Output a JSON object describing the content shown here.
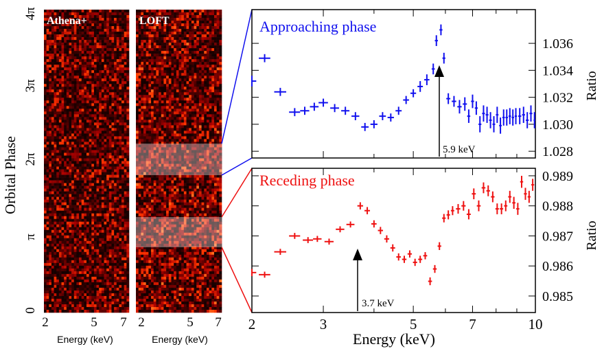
{
  "colors": {
    "approaching": "#1010ee",
    "receding": "#ee1111",
    "axis": "#000000",
    "heatmap_low": "#1a0000",
    "heatmap_high": "#ffb347"
  },
  "chart_data": [
    {
      "type": "heatmap",
      "title": "Athena+",
      "xlabel": "Energy (keV)",
      "ylabel": "Orbital Phase",
      "x_ticks": [
        "2",
        "5",
        "7"
      ],
      "y_ticks": [
        "0",
        "π",
        "2π",
        "3π",
        "4π"
      ],
      "xlim": [
        2,
        7
      ],
      "ylim_phase_pi": [
        0,
        4
      ]
    },
    {
      "type": "heatmap",
      "title": "LOFT",
      "xlabel": "Energy (keV)",
      "x_ticks": [
        "2",
        "5",
        "7"
      ],
      "xlim": [
        2,
        7
      ],
      "ylim_phase_pi": [
        0,
        4
      ],
      "highlight_bands_phase_pi": [
        [
          1.85,
          2.3
        ],
        [
          0.85,
          1.3
        ]
      ]
    },
    {
      "type": "scatter",
      "title": "Approaching phase",
      "ylabel": "Ratio",
      "x_scale": "log",
      "xlim": [
        2,
        10
      ],
      "ylim": [
        1.0275,
        1.0385
      ],
      "y_ticks": [
        "1.028",
        "1.030",
        "1.032",
        "1.034",
        "1.036"
      ],
      "series": [
        {
          "color": "#1010ee",
          "x": [
            2.0,
            2.15,
            2.35,
            2.55,
            2.7,
            2.85,
            3.0,
            3.2,
            3.4,
            3.6,
            3.8,
            4.0,
            4.2,
            4.4,
            4.6,
            4.8,
            5.0,
            5.2,
            5.4,
            5.6,
            5.7,
            5.85,
            5.95,
            6.1,
            6.3,
            6.5,
            6.7,
            6.85,
            7.0,
            7.15,
            7.3,
            7.45,
            7.6,
            7.75,
            7.9,
            8.05,
            8.2,
            8.35,
            8.5,
            8.65,
            8.8,
            8.95,
            9.15,
            9.35,
            9.55,
            9.75,
            9.95
          ],
          "y": [
            1.0332,
            1.0349,
            1.0324,
            1.0309,
            1.031,
            1.0313,
            1.0316,
            1.0312,
            1.031,
            1.0306,
            1.0298,
            1.03,
            1.0306,
            1.0305,
            1.031,
            1.0318,
            1.0323,
            1.0328,
            1.0333,
            1.0341,
            1.0362,
            1.037,
            1.0349,
            1.0319,
            1.0317,
            1.0313,
            1.0315,
            1.0306,
            1.0317,
            1.0312,
            1.03,
            1.0308,
            1.0307,
            1.0303,
            1.03,
            1.0307,
            1.0299,
            1.0305,
            1.0305,
            1.0306,
            1.0305,
            1.0306,
            1.0306,
            1.0307,
            1.0303,
            1.0308,
            1.0303
          ],
          "xerr": [
            0.05,
            0.07,
            0.08,
            0.08,
            0.07,
            0.07,
            0.08,
            0.08,
            0.08,
            0.08,
            0.08,
            0.08,
            0.08,
            0.08,
            0.08,
            0.08,
            0.08,
            0.08,
            0.08,
            0.05,
            0.05,
            0.05,
            0.05,
            0.07,
            0.08,
            0.08,
            0.08,
            0.06,
            0.06,
            0.06,
            0.06,
            0.06,
            0.06,
            0.06,
            0.06,
            0.06,
            0.06,
            0.06,
            0.06,
            0.06,
            0.06,
            0.06,
            0.08,
            0.08,
            0.08,
            0.08,
            0.05
          ],
          "yerr": [
            0.0004,
            0.0003,
            0.0003,
            0.0003,
            0.0003,
            0.0003,
            0.0003,
            0.0003,
            0.0003,
            0.0003,
            0.0003,
            0.0003,
            0.0003,
            0.0003,
            0.0003,
            0.0003,
            0.0003,
            0.0004,
            0.0004,
            0.0004,
            0.0004,
            0.0004,
            0.0004,
            0.0004,
            0.0004,
            0.0005,
            0.0005,
            0.0005,
            0.0005,
            0.0005,
            0.0006,
            0.0006,
            0.0006,
            0.0006,
            0.0006,
            0.0006,
            0.0006,
            0.0006,
            0.0006,
            0.0006,
            0.0006,
            0.0006,
            0.0006,
            0.0006,
            0.0006,
            0.0006,
            0.0006
          ]
        }
      ],
      "annotation": {
        "text": "5.9 keV",
        "x": 5.9,
        "y": 1.0348
      }
    },
    {
      "type": "scatter",
      "title": "Receding phase",
      "xlabel": "Energy (keV)",
      "ylabel": "Ratio",
      "x_scale": "log",
      "xlim": [
        2,
        10
      ],
      "x_ticks": [
        "2",
        "3",
        "5",
        "7",
        "10"
      ],
      "ylim": [
        0.98445,
        0.98925
      ],
      "y_ticks": [
        "0.985",
        "0.986",
        "0.987",
        "0.988",
        "0.989"
      ],
      "series": [
        {
          "color": "#ee1111",
          "x": [
            2.0,
            2.15,
            2.35,
            2.55,
            2.75,
            2.9,
            3.1,
            3.3,
            3.5,
            3.7,
            3.85,
            4.0,
            4.15,
            4.3,
            4.45,
            4.6,
            4.75,
            4.9,
            5.05,
            5.2,
            5.35,
            5.5,
            5.65,
            5.8,
            5.95,
            6.1,
            6.25,
            6.45,
            6.65,
            6.85,
            7.05,
            7.25,
            7.45,
            7.65,
            7.85,
            8.05,
            8.25,
            8.45,
            8.65,
            8.85,
            9.05,
            9.25,
            9.45,
            9.65,
            9.85
          ],
          "y": [
            0.98578,
            0.98571,
            0.98647,
            0.987,
            0.98686,
            0.9869,
            0.98681,
            0.98722,
            0.98738,
            0.988,
            0.98784,
            0.9874,
            0.98718,
            0.9869,
            0.9866,
            0.9863,
            0.98622,
            0.9864,
            0.98612,
            0.98622,
            0.98634,
            0.98549,
            0.9859,
            0.98666,
            0.98759,
            0.9877,
            0.98784,
            0.9879,
            0.988,
            0.98772,
            0.9884,
            0.988,
            0.9886,
            0.9885,
            0.9883,
            0.9879,
            0.9879,
            0.988,
            0.9883,
            0.9881,
            0.9879,
            0.9888,
            0.9884,
            0.9883,
            0.9887
          ],
          "xerr": [
            0.05,
            0.07,
            0.08,
            0.08,
            0.08,
            0.07,
            0.08,
            0.08,
            0.08,
            0.06,
            0.06,
            0.06,
            0.06,
            0.06,
            0.06,
            0.06,
            0.06,
            0.06,
            0.06,
            0.06,
            0.06,
            0.06,
            0.06,
            0.06,
            0.06,
            0.06,
            0.06,
            0.08,
            0.08,
            0.08,
            0.08,
            0.08,
            0.08,
            0.08,
            0.08,
            0.08,
            0.08,
            0.08,
            0.08,
            0.08,
            0.08,
            0.08,
            0.08,
            0.08,
            0.08
          ],
          "yerr": [
            0.00012,
            0.0001,
            0.0001,
            0.0001,
            0.0001,
            0.0001,
            0.0001,
            0.0001,
            0.0001,
            0.00012,
            0.00012,
            0.00012,
            0.00012,
            0.00012,
            0.00012,
            0.00012,
            0.00012,
            0.00012,
            0.00012,
            0.00012,
            0.00012,
            0.00013,
            0.00013,
            0.00013,
            0.00014,
            0.00015,
            0.00015,
            0.00016,
            0.00016,
            0.00017,
            0.00018,
            0.00018,
            0.00018,
            0.00018,
            0.00018,
            0.00018,
            0.00018,
            0.00018,
            0.0002,
            0.0002,
            0.0002,
            0.0002,
            0.0002,
            0.0002,
            0.0002
          ]
        }
      ],
      "annotation": {
        "text": "3.7 keV",
        "x": 3.7,
        "y": 0.98735
      }
    }
  ]
}
